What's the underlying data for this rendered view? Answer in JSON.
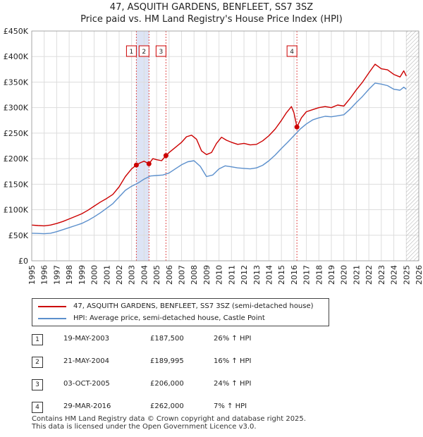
{
  "title": {
    "line1": "47, ASQUITH GARDENS, BENFLEET, SS7 3SZ",
    "line2": "Price paid vs. HM Land Registry's House Price Index (HPI)"
  },
  "chart_data": {
    "type": "line",
    "title": "47, ASQUITH GARDENS, BENFLEET, SS7 3SZ — Price paid vs. HM Land Registry's House Price Index (HPI)",
    "xlim": [
      1995,
      2026
    ],
    "ylim": [
      0,
      450000
    ],
    "x_ticks": [
      "1995",
      "1996",
      "1997",
      "1998",
      "1999",
      "2000",
      "2001",
      "2002",
      "2003",
      "2004",
      "2005",
      "2006",
      "2007",
      "2008",
      "2009",
      "2010",
      "2011",
      "2012",
      "2013",
      "2014",
      "2015",
      "2016",
      "2017",
      "2018",
      "2019",
      "2020",
      "2021",
      "2022",
      "2023",
      "2024",
      "2025",
      "2026"
    ],
    "y_ticks": [
      {
        "value": 0,
        "label": "£0"
      },
      {
        "value": 50000,
        "label": "£50K"
      },
      {
        "value": 100000,
        "label": "£100K"
      },
      {
        "value": 150000,
        "label": "£150K"
      },
      {
        "value": 200000,
        "label": "£200K"
      },
      {
        "value": 250000,
        "label": "£250K"
      },
      {
        "value": 300000,
        "label": "£300K"
      },
      {
        "value": 350000,
        "label": "£350K"
      },
      {
        "value": 400000,
        "label": "£400K"
      },
      {
        "value": 450000,
        "label": "£450K"
      }
    ],
    "grid": true,
    "colors": {
      "property": "#cc0000",
      "hpi": "#5b8fcc",
      "sale_band": "#dde4f5",
      "sale_line": "#e05050",
      "future_hatch": "#999999",
      "grid": "#dddddd"
    },
    "series": [
      {
        "name": "47, ASQUITH GARDENS, BENFLEET, SS7 3SZ (semi-detached house)",
        "key": "property",
        "points": [
          [
            1995.0,
            70000
          ],
          [
            1995.5,
            69000
          ],
          [
            1996.0,
            68500
          ],
          [
            1996.5,
            70000
          ],
          [
            1997.0,
            73000
          ],
          [
            1997.5,
            77000
          ],
          [
            1998.0,
            82000
          ],
          [
            1998.5,
            87000
          ],
          [
            1999.0,
            92000
          ],
          [
            1999.5,
            99000
          ],
          [
            2000.0,
            107000
          ],
          [
            2000.5,
            115000
          ],
          [
            2001.0,
            122000
          ],
          [
            2001.5,
            130000
          ],
          [
            2002.0,
            145000
          ],
          [
            2002.5,
            165000
          ],
          [
            2003.0,
            180000
          ],
          [
            2003.38,
            187500
          ],
          [
            2003.7,
            192000
          ],
          [
            2004.0,
            195000
          ],
          [
            2004.39,
            189995
          ],
          [
            2004.7,
            200000
          ],
          [
            2005.0,
            198000
          ],
          [
            2005.4,
            196000
          ],
          [
            2005.75,
            206000
          ],
          [
            2006.0,
            212000
          ],
          [
            2006.5,
            222000
          ],
          [
            2007.0,
            232000
          ],
          [
            2007.4,
            243000
          ],
          [
            2007.8,
            246000
          ],
          [
            2008.2,
            238000
          ],
          [
            2008.6,
            215000
          ],
          [
            2009.0,
            208000
          ],
          [
            2009.4,
            212000
          ],
          [
            2009.8,
            230000
          ],
          [
            2010.2,
            242000
          ],
          [
            2010.6,
            236000
          ],
          [
            2011.0,
            232000
          ],
          [
            2011.5,
            228000
          ],
          [
            2012.0,
            230000
          ],
          [
            2012.5,
            227000
          ],
          [
            2013.0,
            228000
          ],
          [
            2013.5,
            235000
          ],
          [
            2014.0,
            245000
          ],
          [
            2014.5,
            258000
          ],
          [
            2015.0,
            275000
          ],
          [
            2015.4,
            290000
          ],
          [
            2015.8,
            302000
          ],
          [
            2016.0,
            290000
          ],
          [
            2016.24,
            262000
          ],
          [
            2016.6,
            280000
          ],
          [
            2017.0,
            292000
          ],
          [
            2017.5,
            296000
          ],
          [
            2018.0,
            300000
          ],
          [
            2018.5,
            302000
          ],
          [
            2019.0,
            300000
          ],
          [
            2019.5,
            305000
          ],
          [
            2020.0,
            303000
          ],
          [
            2020.5,
            318000
          ],
          [
            2021.0,
            335000
          ],
          [
            2021.5,
            350000
          ],
          [
            2022.0,
            368000
          ],
          [
            2022.5,
            385000
          ],
          [
            2023.0,
            376000
          ],
          [
            2023.5,
            374000
          ],
          [
            2024.0,
            365000
          ],
          [
            2024.5,
            360000
          ],
          [
            2024.8,
            372000
          ],
          [
            2025.0,
            362000
          ]
        ]
      },
      {
        "name": "HPI: Average price, semi-detached house, Castle Point",
        "key": "hpi",
        "points": [
          [
            1995.0,
            54000
          ],
          [
            1995.5,
            53500
          ],
          [
            1996.0,
            53000
          ],
          [
            1996.5,
            54000
          ],
          [
            1997.0,
            57000
          ],
          [
            1997.5,
            61000
          ],
          [
            1998.0,
            65000
          ],
          [
            1998.5,
            69000
          ],
          [
            1999.0,
            73000
          ],
          [
            1999.5,
            79000
          ],
          [
            2000.0,
            86000
          ],
          [
            2000.5,
            94000
          ],
          [
            2001.0,
            103000
          ],
          [
            2001.5,
            112000
          ],
          [
            2002.0,
            125000
          ],
          [
            2002.5,
            138000
          ],
          [
            2003.0,
            146000
          ],
          [
            2003.5,
            152000
          ],
          [
            2004.0,
            160000
          ],
          [
            2004.5,
            166000
          ],
          [
            2005.0,
            167000
          ],
          [
            2005.5,
            168000
          ],
          [
            2006.0,
            172000
          ],
          [
            2006.5,
            180000
          ],
          [
            2007.0,
            188000
          ],
          [
            2007.5,
            194000
          ],
          [
            2008.0,
            196000
          ],
          [
            2008.5,
            185000
          ],
          [
            2009.0,
            165000
          ],
          [
            2009.5,
            168000
          ],
          [
            2010.0,
            180000
          ],
          [
            2010.5,
            186000
          ],
          [
            2011.0,
            184000
          ],
          [
            2011.5,
            182000
          ],
          [
            2012.0,
            181000
          ],
          [
            2012.5,
            180000
          ],
          [
            2013.0,
            182000
          ],
          [
            2013.5,
            187000
          ],
          [
            2014.0,
            196000
          ],
          [
            2014.5,
            207000
          ],
          [
            2015.0,
            220000
          ],
          [
            2015.5,
            232000
          ],
          [
            2016.0,
            245000
          ],
          [
            2016.5,
            258000
          ],
          [
            2017.0,
            268000
          ],
          [
            2017.5,
            276000
          ],
          [
            2018.0,
            280000
          ],
          [
            2018.5,
            283000
          ],
          [
            2019.0,
            282000
          ],
          [
            2019.5,
            284000
          ],
          [
            2020.0,
            286000
          ],
          [
            2020.5,
            297000
          ],
          [
            2021.0,
            310000
          ],
          [
            2021.5,
            322000
          ],
          [
            2022.0,
            336000
          ],
          [
            2022.5,
            348000
          ],
          [
            2023.0,
            346000
          ],
          [
            2023.5,
            343000
          ],
          [
            2024.0,
            336000
          ],
          [
            2024.5,
            334000
          ],
          [
            2024.8,
            340000
          ],
          [
            2025.0,
            336000
          ]
        ]
      }
    ],
    "sales": [
      {
        "num": "1",
        "x": 2003.38,
        "price": 187500
      },
      {
        "num": "2",
        "x": 2004.39,
        "price": 189995
      },
      {
        "num": "3",
        "x": 2005.75,
        "price": 206000
      },
      {
        "num": "4",
        "x": 2016.24,
        "price": 262000
      }
    ],
    "future_from": 2025.0
  },
  "legend": {
    "property_label": "47, ASQUITH GARDENS, BENFLEET, SS7 3SZ (semi-detached house)",
    "hpi_label": "HPI: Average price, semi-detached house, Castle Point"
  },
  "table": [
    {
      "num": "1",
      "date": "19-MAY-2003",
      "price": "£187,500",
      "hpi": "26% ↑ HPI"
    },
    {
      "num": "2",
      "date": "21-MAY-2004",
      "price": "£189,995",
      "hpi": "16% ↑ HPI"
    },
    {
      "num": "3",
      "date": "03-OCT-2005",
      "price": "£206,000",
      "hpi": "24% ↑ HPI"
    },
    {
      "num": "4",
      "date": "29-MAR-2016",
      "price": "£262,000",
      "hpi": "7% ↑ HPI"
    }
  ],
  "footer": {
    "line1": "Contains HM Land Registry data © Crown copyright and database right 2025.",
    "line2": "This data is licensed under the Open Government Licence v3.0."
  }
}
